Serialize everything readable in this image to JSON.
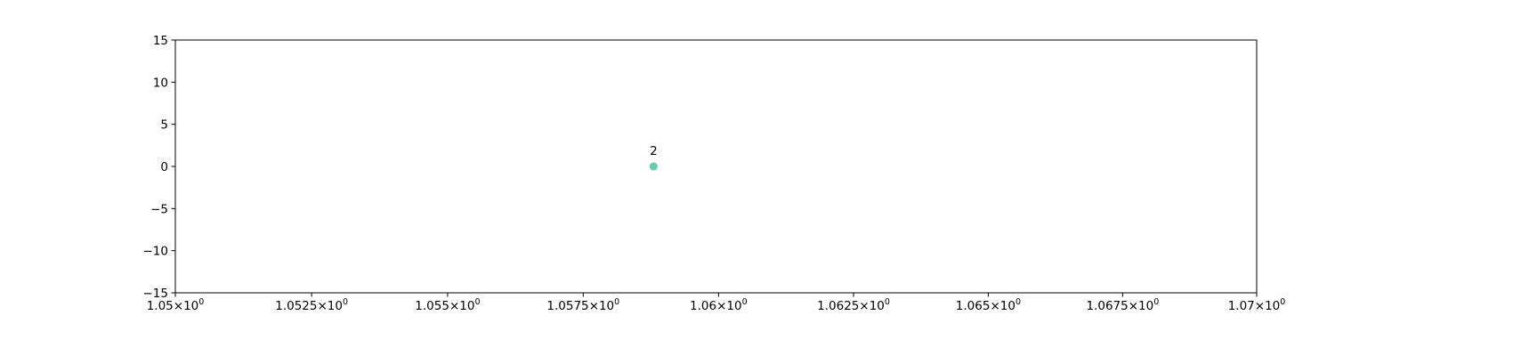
{
  "chart_data": {
    "type": "scatter",
    "x_scale": "log",
    "xlim": [
      1.05,
      1.07
    ],
    "ylim": [
      -15,
      15
    ],
    "x_ticks": [
      1.05,
      1.0525,
      1.055,
      1.0575,
      1.06,
      1.0625,
      1.065,
      1.0675,
      1.07
    ],
    "x_tick_labels": [
      {
        "mantissa": "1.05",
        "exponent": "0"
      },
      {
        "mantissa": "1.0525",
        "exponent": "0"
      },
      {
        "mantissa": "1.055",
        "exponent": "0"
      },
      {
        "mantissa": "1.0575",
        "exponent": "0"
      },
      {
        "mantissa": "1.06",
        "exponent": "0"
      },
      {
        "mantissa": "1.0625",
        "exponent": "0"
      },
      {
        "mantissa": "1.065",
        "exponent": "0"
      },
      {
        "mantissa": "1.0675",
        "exponent": "0"
      },
      {
        "mantissa": "1.07",
        "exponent": "0"
      }
    ],
    "y_ticks": [
      15,
      10,
      5,
      0,
      -5,
      -10,
      -15
    ],
    "y_tick_labels": [
      "15",
      "10",
      "5",
      "0",
      "−5",
      "−10",
      "−15"
    ],
    "grid": false,
    "points": [
      {
        "x": 1.0588,
        "y": 0,
        "label": "2",
        "color": "#66cdaa"
      }
    ]
  }
}
